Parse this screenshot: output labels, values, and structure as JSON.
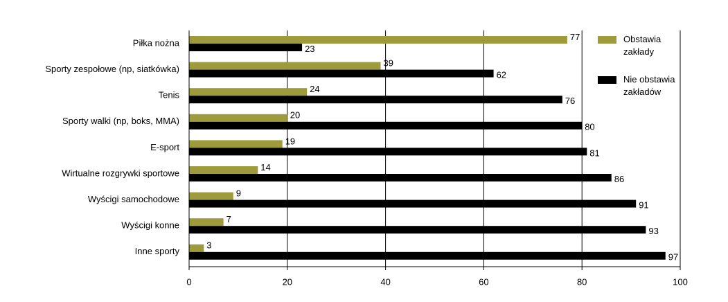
{
  "chart_data": {
    "type": "bar",
    "orientation": "horizontal",
    "categories": [
      "Piłka nożna",
      "Sporty zespołowe (np, siatkówka)",
      "Tenis",
      "Sporty walki  (np, boks, MMA)",
      "E-sport",
      "Wirtualne rozgrywki sportowe",
      "Wyścigi samochodowe",
      "Wyścigi konne",
      "Inne sporty"
    ],
    "series": [
      {
        "name": "Obstawia zakłady",
        "color": "#9d9b3c",
        "values": [
          77,
          39,
          24,
          20,
          19,
          14,
          9,
          7,
          3
        ]
      },
      {
        "name": "Nie obstawia zakładów",
        "color": "#000000",
        "values": [
          23,
          62,
          76,
          80,
          81,
          86,
          91,
          93,
          97
        ]
      }
    ],
    "xlim": [
      0,
      100
    ],
    "xticks": [
      0,
      20,
      40,
      60,
      80,
      100
    ],
    "grid": true,
    "legend": "right"
  }
}
